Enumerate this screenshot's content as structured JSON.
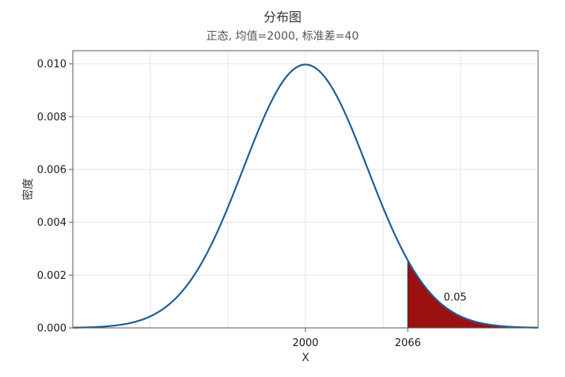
{
  "chart_data": {
    "type": "area",
    "title": "分布图",
    "subtitle": "正态, 均值=2000, 标准差=40",
    "xlabel": "X",
    "ylabel": "密度",
    "distribution": {
      "family": "normal",
      "mean": 2000,
      "sd": 40
    },
    "xlim": [
      1850,
      2150
    ],
    "ylim": [
      0,
      0.0105
    ],
    "x_ticks": [
      2000,
      2066
    ],
    "x_tick_labels": [
      "2000",
      "2066"
    ],
    "y_ticks": [
      0,
      0.002,
      0.004,
      0.006,
      0.008,
      0.01
    ],
    "y_tick_labels": [
      "0.000",
      "0.002",
      "0.004",
      "0.006",
      "0.008",
      "0.010"
    ],
    "shaded_region": {
      "from": 2066,
      "to": 2150,
      "probability_label": "0.05",
      "color": "#9b1111"
    },
    "line_color": "#1f5f95",
    "grid": true
  }
}
